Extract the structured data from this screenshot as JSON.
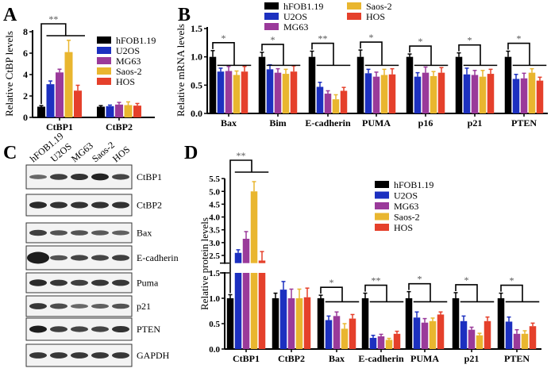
{
  "colors": {
    "hFOB1.19": "#000000",
    "U2OS": "#1c30c0",
    "MG63": "#9a3a9a",
    "Saos-2": "#e9b62f",
    "HOS": "#e5402b"
  },
  "groups": [
    "hFOB1.19",
    "U2OS",
    "MG63",
    "Saos-2",
    "HOS"
  ],
  "panel_labels": {
    "a": "A",
    "b": "B",
    "c": "C",
    "d": "D"
  },
  "chart_data": [
    {
      "panel": "A",
      "type": "bar",
      "ylabel": "Relative CtBP levels",
      "ylim": [
        0,
        8
      ],
      "yticks": [
        0,
        2,
        4,
        6,
        8
      ],
      "categories": [
        "CtBP1",
        "CtBP2"
      ],
      "series": [
        {
          "name": "hFOB1.19",
          "values": [
            1.0,
            1.0
          ],
          "errors": [
            0.1,
            0.1
          ]
        },
        {
          "name": "U2OS",
          "values": [
            3.1,
            1.05
          ],
          "errors": [
            0.3,
            0.1
          ]
        },
        {
          "name": "MG63",
          "values": [
            4.2,
            1.2
          ],
          "errors": [
            0.3,
            0.2
          ]
        },
        {
          "name": "Saos-2",
          "values": [
            6.1,
            1.15
          ],
          "errors": [
            1.1,
            0.3
          ]
        },
        {
          "name": "HOS",
          "values": [
            2.5,
            1.1
          ],
          "errors": [
            0.5,
            0.2
          ]
        }
      ],
      "significance": [
        {
          "category": "CtBP1",
          "label": "**"
        }
      ],
      "legend": "top-right"
    },
    {
      "panel": "B",
      "type": "bar",
      "ylabel": "Relative mRNA levels",
      "ylim": [
        0,
        1.5
      ],
      "yticks": [
        "0.0",
        "0.5",
        "1.0",
        "1.5"
      ],
      "categories": [
        "Bax",
        "Bim",
        "E-cadherin",
        "PUMA",
        "p16",
        "p21",
        "PTEN"
      ],
      "series": [
        {
          "name": "hFOB1.19",
          "values": [
            1.0,
            1.0,
            1.0,
            1.0,
            1.0,
            1.0,
            1.0
          ],
          "errors": [
            0.11,
            0.08,
            0.1,
            0.12,
            0.05,
            0.07,
            0.1
          ]
        },
        {
          "name": "U2OS",
          "values": [
            0.74,
            0.78,
            0.47,
            0.71,
            0.65,
            0.69,
            0.61
          ],
          "errors": [
            0.06,
            0.08,
            0.08,
            0.07,
            0.07,
            0.11,
            0.08
          ]
        },
        {
          "name": "MG63",
          "values": [
            0.75,
            0.72,
            0.35,
            0.65,
            0.72,
            0.68,
            0.62
          ],
          "errors": [
            0.08,
            0.07,
            0.05,
            0.08,
            0.1,
            0.08,
            0.09
          ]
        },
        {
          "name": "Saos-2",
          "values": [
            0.68,
            0.7,
            0.25,
            0.68,
            0.66,
            0.65,
            0.72
          ],
          "errors": [
            0.07,
            0.08,
            0.08,
            0.1,
            0.08,
            0.11,
            0.07
          ]
        },
        {
          "name": "HOS",
          "values": [
            0.74,
            0.74,
            0.4,
            0.69,
            0.72,
            0.7,
            0.58
          ],
          "errors": [
            0.09,
            0.1,
            0.06,
            0.1,
            0.09,
            0.08,
            0.06
          ]
        }
      ],
      "significance": [
        {
          "category": "Bax",
          "label": "*"
        },
        {
          "category": "Bim",
          "label": "*"
        },
        {
          "category": "E-cadherin",
          "label": "**"
        },
        {
          "category": "PUMA",
          "label": "*"
        },
        {
          "category": "p16",
          "label": "*"
        },
        {
          "category": "p21",
          "label": "*"
        },
        {
          "category": "PTEN",
          "label": "*"
        }
      ],
      "legend": "top"
    },
    {
      "panel": "D",
      "type": "bar",
      "ylabel": "Relative protein  levels",
      "ylim": [
        0,
        5.5
      ],
      "axis_break": [
        1.5,
        2.2
      ],
      "yticks": [
        "0.0",
        "0.5",
        "1.0",
        "1.5",
        "2.5",
        "3.0",
        "3.5",
        "4.0",
        "4.5",
        "5.0",
        "5.5"
      ],
      "categories": [
        "CtBP1",
        "CtBP2",
        "Bax",
        "E-cadherin",
        "PUMA",
        "p21",
        "PTEN"
      ],
      "series": [
        {
          "name": "hFOB1.19",
          "values": [
            1.0,
            1.0,
            1.0,
            1.0,
            1.0,
            1.0,
            1.0
          ],
          "errors": [
            0.07,
            0.1,
            0.06,
            0.1,
            0.13,
            0.11,
            0.1
          ]
        },
        {
          "name": "U2OS",
          "values": [
            2.6,
            1.17,
            0.57,
            0.22,
            0.62,
            0.55,
            0.54
          ],
          "errors": [
            0.12,
            0.16,
            0.08,
            0.05,
            0.11,
            0.1,
            0.09
          ]
        },
        {
          "name": "MG63",
          "values": [
            3.15,
            1.0,
            0.65,
            0.25,
            0.52,
            0.38,
            0.3
          ],
          "errors": [
            0.28,
            0.18,
            0.08,
            0.04,
            0.08,
            0.05,
            0.08
          ]
        },
        {
          "name": "Saos-2",
          "values": [
            5.0,
            1.0,
            0.4,
            0.18,
            0.55,
            0.27,
            0.3
          ],
          "errors": [
            0.38,
            0.18,
            0.1,
            0.03,
            0.06,
            0.04,
            0.06
          ]
        },
        {
          "name": "HOS",
          "values": [
            2.3,
            1.02,
            0.6,
            0.3,
            0.68,
            0.55,
            0.45
          ],
          "errors": [
            0.35,
            0.18,
            0.08,
            0.05,
            0.05,
            0.08,
            0.06
          ]
        }
      ],
      "significance": [
        {
          "category": "CtBP1",
          "label": "**"
        },
        {
          "category": "Bax",
          "label": "*"
        },
        {
          "category": "E-cadherin",
          "label": "**"
        },
        {
          "category": "PUMA",
          "label": "*"
        },
        {
          "category": "p21",
          "label": "*"
        },
        {
          "category": "PTEN",
          "label": "*"
        }
      ],
      "legend": "top-right"
    }
  ],
  "western_blot": {
    "lanes": [
      "hFOB1.19",
      "U2OS",
      "MG63",
      "Saos-2",
      "HOS"
    ],
    "rows": [
      {
        "label": "CtBP1",
        "intensity": [
          0.45,
          0.75,
          0.85,
          0.95,
          0.7
        ]
      },
      {
        "label": "CtBP2",
        "intensity": [
          0.9,
          0.85,
          0.85,
          0.85,
          0.85
        ]
      },
      {
        "label": "Bax",
        "intensity": [
          0.75,
          0.6,
          0.6,
          0.55,
          0.5
        ]
      },
      {
        "label": "E-cadherin",
        "intensity": [
          1.0,
          0.6,
          0.7,
          0.7,
          0.75
        ]
      },
      {
        "label": "Puma",
        "intensity": [
          0.9,
          0.8,
          0.75,
          0.8,
          0.8
        ]
      },
      {
        "label": "p21",
        "intensity": [
          0.8,
          0.65,
          0.45,
          0.5,
          0.6
        ]
      },
      {
        "label": "PTEN",
        "intensity": [
          1.0,
          0.75,
          0.7,
          0.7,
          0.85
        ]
      },
      {
        "label": "GAPDH",
        "intensity": [
          0.8,
          0.8,
          0.8,
          0.8,
          0.8
        ]
      }
    ]
  }
}
